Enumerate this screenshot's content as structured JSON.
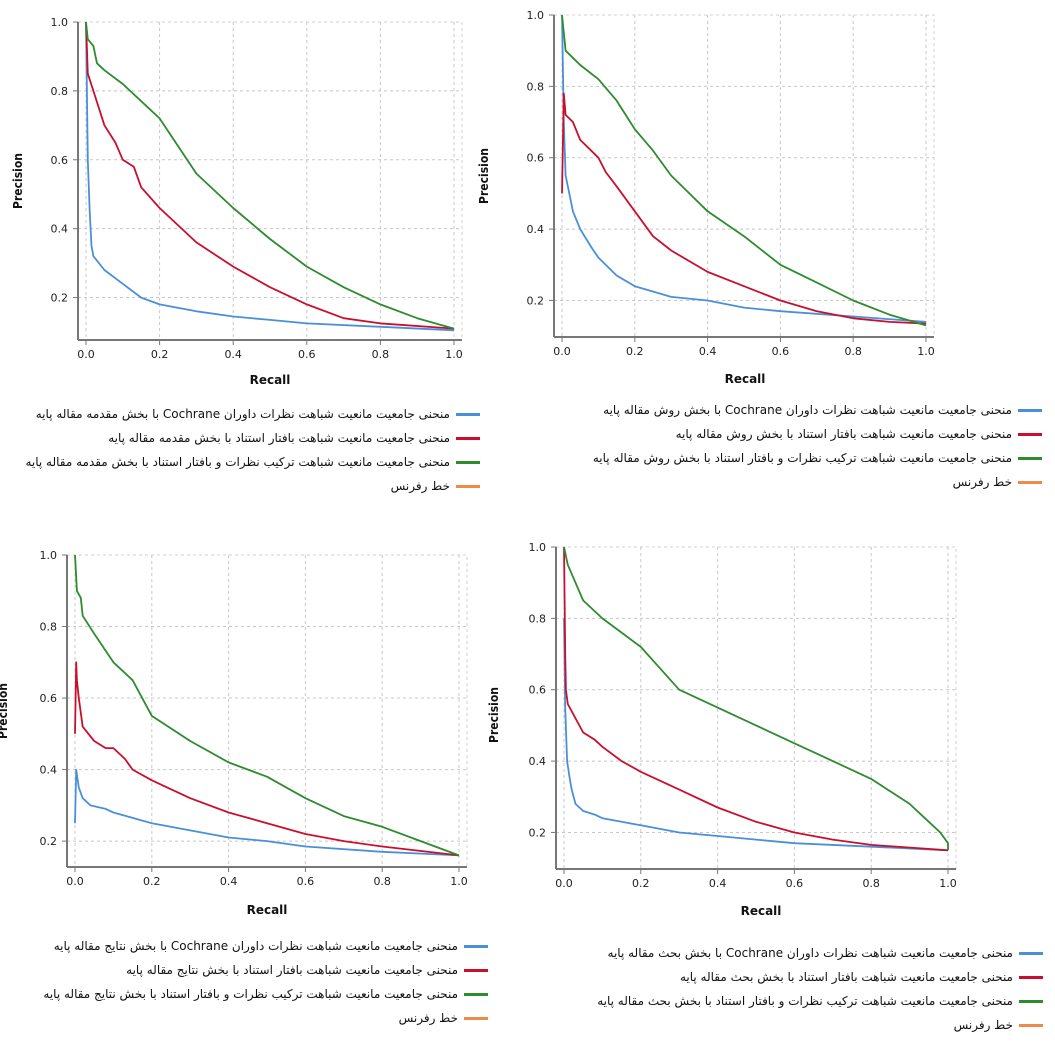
{
  "chart_data": [
    {
      "id": "intro",
      "type": "line",
      "xlabel": "Recall",
      "ylabel": "Precision",
      "xlim": [
        0,
        1.0
      ],
      "ylim": [
        0.1,
        1.0
      ],
      "xticks": [
        "0.0",
        "0.2",
        "0.4",
        "0.6",
        "0.8",
        "1.0"
      ],
      "yticks": [
        "0.2",
        "0.4",
        "0.6",
        "0.8",
        "1.0"
      ],
      "grid": true,
      "legend_position": "bottom",
      "series": [
        {
          "name": "منحنی جامعیت مانعیت شباهت نظرات داوران Cochrane با بخش مقدمه مقاله پایه",
          "color": "#4a90d9",
          "points": [
            [
              0,
              1.0
            ],
            [
              0.005,
              0.6
            ],
            [
              0.01,
              0.45
            ],
            [
              0.015,
              0.35
            ],
            [
              0.02,
              0.32
            ],
            [
              0.05,
              0.28
            ],
            [
              0.1,
              0.24
            ],
            [
              0.15,
              0.2
            ],
            [
              0.2,
              0.18
            ],
            [
              0.3,
              0.16
            ],
            [
              0.4,
              0.145
            ],
            [
              0.5,
              0.135
            ],
            [
              0.6,
              0.125
            ],
            [
              0.8,
              0.115
            ],
            [
              1.0,
              0.105
            ]
          ]
        },
        {
          "name": "منحنی جامعیت مانعیت شباهت بافتار استناد با بخش مقدمه مقاله پایه",
          "color": "#c8102e",
          "points": [
            [
              0,
              1.0
            ],
            [
              0.005,
              0.85
            ],
            [
              0.02,
              0.8
            ],
            [
              0.05,
              0.7
            ],
            [
              0.08,
              0.65
            ],
            [
              0.1,
              0.6
            ],
            [
              0.13,
              0.58
            ],
            [
              0.15,
              0.52
            ],
            [
              0.2,
              0.46
            ],
            [
              0.3,
              0.36
            ],
            [
              0.4,
              0.29
            ],
            [
              0.5,
              0.23
            ],
            [
              0.6,
              0.18
            ],
            [
              0.7,
              0.14
            ],
            [
              0.8,
              0.125
            ],
            [
              1.0,
              0.11
            ]
          ]
        },
        {
          "name": "منحنی جامعیت مانعیت شباهت ترکیب نظرات و بافتار استناد با بخش مقدمه مقاله پایه",
          "color": "#2e8b2e",
          "points": [
            [
              0,
              1.0
            ],
            [
              0.005,
              0.95
            ],
            [
              0.02,
              0.93
            ],
            [
              0.03,
              0.88
            ],
            [
              0.05,
              0.86
            ],
            [
              0.1,
              0.82
            ],
            [
              0.15,
              0.77
            ],
            [
              0.2,
              0.72
            ],
            [
              0.25,
              0.64
            ],
            [
              0.3,
              0.56
            ],
            [
              0.4,
              0.46
            ],
            [
              0.5,
              0.37
            ],
            [
              0.6,
              0.29
            ],
            [
              0.7,
              0.23
            ],
            [
              0.8,
              0.18
            ],
            [
              0.9,
              0.14
            ],
            [
              1.0,
              0.11
            ]
          ]
        },
        {
          "name": "خط رفرنس",
          "color": "#f08a4b",
          "points": []
        }
      ]
    },
    {
      "id": "method",
      "type": "line",
      "xlabel": "Recall",
      "ylabel": "Precision",
      "xlim": [
        0,
        1.0
      ],
      "ylim": [
        0.12,
        1.0
      ],
      "xticks": [
        "0.0",
        "0.2",
        "0.4",
        "0.6",
        "0.8",
        "1.0"
      ],
      "yticks": [
        "0.2",
        "0.4",
        "0.6",
        "0.8",
        "1.0"
      ],
      "grid": true,
      "legend_position": "bottom",
      "series": [
        {
          "name": "منحنی جامعیت مانعیت شباهت نظرات داوران Cochrane با بخش روش مقاله پایه",
          "color": "#4a90d9",
          "points": [
            [
              0,
              1.0
            ],
            [
              0.005,
              0.7
            ],
            [
              0.01,
              0.55
            ],
            [
              0.02,
              0.5
            ],
            [
              0.03,
              0.45
            ],
            [
              0.05,
              0.4
            ],
            [
              0.08,
              0.35
            ],
            [
              0.1,
              0.32
            ],
            [
              0.15,
              0.27
            ],
            [
              0.2,
              0.24
            ],
            [
              0.3,
              0.21
            ],
            [
              0.4,
              0.2
            ],
            [
              0.5,
              0.18
            ],
            [
              0.6,
              0.17
            ],
            [
              0.8,
              0.155
            ],
            [
              1.0,
              0.14
            ]
          ]
        },
        {
          "name": "منحنی جامعیت مانعیت شباهت بافتار استناد با بخش روش مقاله پایه",
          "color": "#c8102e",
          "points": [
            [
              0,
              0.5
            ],
            [
              0.005,
              0.78
            ],
            [
              0.01,
              0.72
            ],
            [
              0.03,
              0.7
            ],
            [
              0.05,
              0.65
            ],
            [
              0.1,
              0.6
            ],
            [
              0.12,
              0.56
            ],
            [
              0.15,
              0.52
            ],
            [
              0.2,
              0.45
            ],
            [
              0.25,
              0.38
            ],
            [
              0.3,
              0.34
            ],
            [
              0.4,
              0.28
            ],
            [
              0.5,
              0.24
            ],
            [
              0.6,
              0.2
            ],
            [
              0.7,
              0.17
            ],
            [
              0.8,
              0.15
            ],
            [
              0.9,
              0.14
            ],
            [
              1.0,
              0.135
            ]
          ]
        },
        {
          "name": "منحنی جامعیت مانعیت شباهت ترکیب نظرات و بافتار استناد با بخش روش مقاله پایه",
          "color": "#2e8b2e",
          "points": [
            [
              0,
              1.0
            ],
            [
              0.01,
              0.9
            ],
            [
              0.03,
              0.88
            ],
            [
              0.05,
              0.86
            ],
            [
              0.1,
              0.82
            ],
            [
              0.15,
              0.76
            ],
            [
              0.2,
              0.68
            ],
            [
              0.25,
              0.62
            ],
            [
              0.3,
              0.55
            ],
            [
              0.4,
              0.45
            ],
            [
              0.5,
              0.38
            ],
            [
              0.6,
              0.3
            ],
            [
              0.7,
              0.25
            ],
            [
              0.8,
              0.2
            ],
            [
              0.9,
              0.16
            ],
            [
              1.0,
              0.13
            ]
          ]
        },
        {
          "name": "خط رفرنس",
          "color": "#f08a4b",
          "points": []
        }
      ]
    },
    {
      "id": "results",
      "type": "line",
      "xlabel": "Recall",
      "ylabel": "Precision",
      "xlim": [
        0,
        1.0
      ],
      "ylim": [
        0.15,
        1.0
      ],
      "xticks": [
        "0.0",
        "0.2",
        "0.4",
        "0.6",
        "0.8",
        "1.0"
      ],
      "yticks": [
        "0.2",
        "0.4",
        "0.6",
        "0.8",
        "1.0"
      ],
      "grid": true,
      "legend_position": "bottom",
      "series": [
        {
          "name": "منحنی جامعیت مانعیت شباهت نظرات داوران Cochrane با بخش نتایج مقاله پایه",
          "color": "#4a90d9",
          "points": [
            [
              0,
              0.25
            ],
            [
              0.003,
              0.4
            ],
            [
              0.01,
              0.35
            ],
            [
              0.02,
              0.32
            ],
            [
              0.04,
              0.3
            ],
            [
              0.08,
              0.29
            ],
            [
              0.1,
              0.28
            ],
            [
              0.2,
              0.25
            ],
            [
              0.3,
              0.23
            ],
            [
              0.4,
              0.21
            ],
            [
              0.5,
              0.2
            ],
            [
              0.6,
              0.185
            ],
            [
              0.8,
              0.17
            ],
            [
              1.0,
              0.16
            ]
          ]
        },
        {
          "name": "منحنی جامعیت مانعیت شباهت بافتار استناد با بخش نتایج مقاله پایه",
          "color": "#c8102e",
          "points": [
            [
              0,
              0.5
            ],
            [
              0.003,
              0.7
            ],
            [
              0.005,
              0.65
            ],
            [
              0.01,
              0.6
            ],
            [
              0.02,
              0.52
            ],
            [
              0.05,
              0.48
            ],
            [
              0.08,
              0.46
            ],
            [
              0.1,
              0.46
            ],
            [
              0.13,
              0.43
            ],
            [
              0.15,
              0.4
            ],
            [
              0.2,
              0.37
            ],
            [
              0.3,
              0.32
            ],
            [
              0.4,
              0.28
            ],
            [
              0.5,
              0.25
            ],
            [
              0.6,
              0.22
            ],
            [
              0.7,
              0.2
            ],
            [
              0.8,
              0.185
            ],
            [
              1.0,
              0.16
            ]
          ]
        },
        {
          "name": "منحنی جامعیت مانعیت شباهت ترکیب نظرات و بافتار استناد با بخش نتایج مقاله پایه",
          "color": "#2e8b2e",
          "points": [
            [
              0,
              1.0
            ],
            [
              0.005,
              0.9
            ],
            [
              0.015,
              0.88
            ],
            [
              0.02,
              0.83
            ],
            [
              0.05,
              0.78
            ],
            [
              0.1,
              0.7
            ],
            [
              0.15,
              0.65
            ],
            [
              0.2,
              0.55
            ],
            [
              0.3,
              0.48
            ],
            [
              0.4,
              0.42
            ],
            [
              0.5,
              0.38
            ],
            [
              0.6,
              0.32
            ],
            [
              0.7,
              0.27
            ],
            [
              0.8,
              0.24
            ],
            [
              0.9,
              0.2
            ],
            [
              1.0,
              0.16
            ]
          ]
        },
        {
          "name": "خط رفرنس",
          "color": "#f08a4b",
          "points": []
        }
      ]
    },
    {
      "id": "discussion",
      "type": "line",
      "xlabel": "Recall",
      "ylabel": "Precision",
      "xlim": [
        0,
        1.0
      ],
      "ylim": [
        0.12,
        1.0
      ],
      "xticks": [
        "0.0",
        "0.2",
        "0.4",
        "0.6",
        "0.8",
        "1.0"
      ],
      "yticks": [
        "0.2",
        "0.4",
        "0.6",
        "0.8",
        "1.0"
      ],
      "grid": true,
      "legend_position": "bottom",
      "series": [
        {
          "name": "منحنی جامعیت مانعیت شباهت نظرات داوران Cochrane با بخش بحث مقاله پایه",
          "color": "#4a90d9",
          "points": [
            [
              0,
              0.8
            ],
            [
              0.003,
              0.55
            ],
            [
              0.008,
              0.4
            ],
            [
              0.015,
              0.35
            ],
            [
              0.02,
              0.32
            ],
            [
              0.03,
              0.28
            ],
            [
              0.05,
              0.26
            ],
            [
              0.08,
              0.25
            ],
            [
              0.1,
              0.24
            ],
            [
              0.15,
              0.23
            ],
            [
              0.2,
              0.22
            ],
            [
              0.3,
              0.2
            ],
            [
              0.4,
              0.19
            ],
            [
              0.5,
              0.18
            ],
            [
              0.6,
              0.17
            ],
            [
              0.8,
              0.16
            ],
            [
              1.0,
              0.15
            ]
          ]
        },
        {
          "name": "منحنی جامعیت مانعیت شباهت بافتار استناد با بخش بحث مقاله پایه",
          "color": "#c8102e",
          "points": [
            [
              0,
              1.0
            ],
            [
              0.003,
              0.7
            ],
            [
              0.005,
              0.6
            ],
            [
              0.01,
              0.56
            ],
            [
              0.03,
              0.52
            ],
            [
              0.05,
              0.48
            ],
            [
              0.08,
              0.46
            ],
            [
              0.1,
              0.44
            ],
            [
              0.15,
              0.4
            ],
            [
              0.2,
              0.37
            ],
            [
              0.3,
              0.32
            ],
            [
              0.4,
              0.27
            ],
            [
              0.5,
              0.23
            ],
            [
              0.6,
              0.2
            ],
            [
              0.7,
              0.18
            ],
            [
              0.8,
              0.165
            ],
            [
              1.0,
              0.15
            ]
          ]
        },
        {
          "name": "منحنی جامعیت مانعیت شباهت ترکیب نظرات و بافتار استناد با بخش بحث مقاله پایه",
          "color": "#2e8b2e",
          "points": [
            [
              0,
              1.0
            ],
            [
              0.01,
              0.95
            ],
            [
              0.03,
              0.9
            ],
            [
              0.05,
              0.85
            ],
            [
              0.1,
              0.8
            ],
            [
              0.15,
              0.76
            ],
            [
              0.2,
              0.72
            ],
            [
              0.25,
              0.66
            ],
            [
              0.3,
              0.6
            ],
            [
              0.4,
              0.55
            ],
            [
              0.5,
              0.5
            ],
            [
              0.6,
              0.45
            ],
            [
              0.7,
              0.4
            ],
            [
              0.8,
              0.35
            ],
            [
              0.9,
              0.28
            ],
            [
              0.95,
              0.23
            ],
            [
              0.98,
              0.2
            ],
            [
              1.0,
              0.17
            ],
            [
              1.0,
              0.15
            ]
          ]
        },
        {
          "name": "خط رفرنس",
          "color": "#f08a4b",
          "points": []
        }
      ]
    }
  ]
}
